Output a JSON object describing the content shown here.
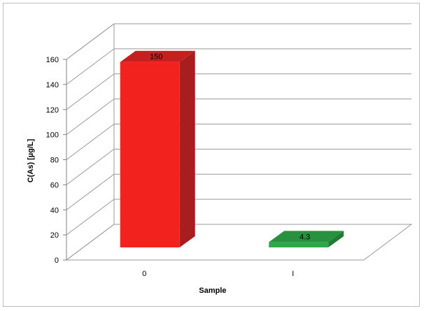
{
  "chart_data": {
    "type": "bar",
    "categories": [
      "0",
      "I"
    ],
    "values": [
      150,
      4.3
    ],
    "data_labels": [
      "150",
      "4.3"
    ],
    "xlabel": "Sample",
    "ylabel": "C(As)  [µg/L]",
    "ylim": [
      0,
      160
    ],
    "yticks": [
      0,
      20,
      40,
      60,
      80,
      100,
      120,
      140,
      160
    ],
    "grid": true,
    "three_d": true,
    "colors": {
      "bar_0_front": "#f2231f",
      "bar_0_side": "#a61e1e",
      "bar_0_top": "#c52020",
      "bar_1_front": "#2ea84a",
      "bar_1_side": "#1f7a33",
      "bar_1_top": "#27913f",
      "gridline": "#999999",
      "axis": "#808080"
    }
  }
}
